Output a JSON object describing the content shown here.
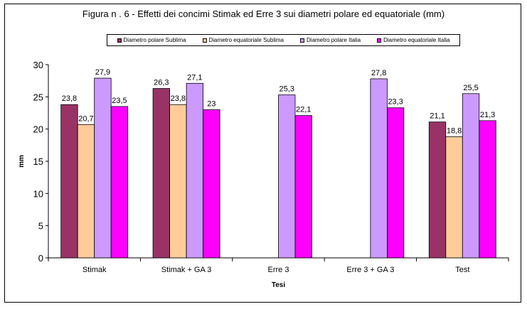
{
  "chart_data": {
    "type": "bar",
    "title": "Figura n . 6 - Effetti dei concimi Stimak ed Erre 3 sui diametri polare ed equatoriale (mm)",
    "xlabel": "Tesi",
    "ylabel": "mm",
    "ylim": [
      0,
      30
    ],
    "yticks": [
      0,
      5,
      10,
      15,
      20,
      25,
      30
    ],
    "grid": false,
    "legend_position": "top",
    "categories": [
      "Stimak",
      "Stimak + GA 3",
      "Erre 3",
      "Erre 3 + GA 3",
      "Test"
    ],
    "series": [
      {
        "name": "Diametro polare Sublima",
        "color": "#993366",
        "values": [
          23.8,
          26.3,
          null,
          null,
          21.1
        ],
        "labels": [
          "23,8",
          "26,3",
          "",
          "",
          "21,1"
        ]
      },
      {
        "name": "Diametro equatoriale Sublima",
        "color": "#FFCC99",
        "values": [
          20.7,
          23.8,
          null,
          null,
          18.8
        ],
        "labels": [
          "20,7",
          "23,8",
          "",
          "",
          "18,8"
        ]
      },
      {
        "name": "Diametro polare Italia",
        "color": "#CC99FF",
        "values": [
          27.9,
          27.1,
          25.3,
          27.8,
          25.5
        ],
        "labels": [
          "27,9",
          "27,1",
          "25,3",
          "27,8",
          "25,5"
        ]
      },
      {
        "name": "Diametro equatoriale Italia",
        "color": "#FF00FF",
        "values": [
          23.5,
          23,
          22.1,
          23.3,
          21.3
        ],
        "labels": [
          "23,5",
          "23",
          "22,1",
          "23,3",
          "21,3"
        ]
      }
    ]
  }
}
